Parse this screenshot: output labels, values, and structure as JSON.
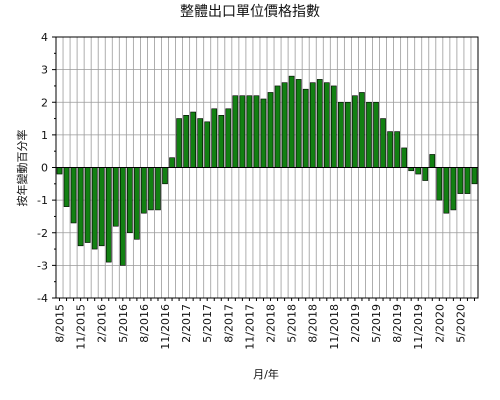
{
  "chart_data": {
    "type": "bar",
    "title": "整體出口單位價格指數",
    "xlabel": "月/年",
    "ylabel": "按年變動百分率",
    "ylim": [
      -4,
      4
    ],
    "yticks": [
      4,
      3,
      2,
      1,
      0,
      -1,
      -2,
      -3,
      -4
    ],
    "grid": true,
    "bar_color": "#128012",
    "bar_edge_color": "#000000",
    "categories": [
      "8/2015",
      "9/2015",
      "10/2015",
      "11/2015",
      "12/2015",
      "1/2016",
      "2/2016",
      "3/2016",
      "4/2016",
      "5/2016",
      "6/2016",
      "7/2016",
      "8/2016",
      "9/2016",
      "10/2016",
      "11/2016",
      "12/2016",
      "1/2017",
      "2/2017",
      "3/2017",
      "4/2017",
      "5/2017",
      "6/2017",
      "7/2017",
      "8/2017",
      "9/2017",
      "10/2017",
      "11/2017",
      "12/2017",
      "1/2018",
      "2/2018",
      "3/2018",
      "4/2018",
      "5/2018",
      "6/2018",
      "7/2018",
      "8/2018",
      "9/2018",
      "10/2018",
      "11/2018",
      "12/2018",
      "1/2019",
      "2/2019",
      "3/2019",
      "4/2019",
      "5/2019",
      "6/2019",
      "7/2019",
      "8/2019",
      "9/2019",
      "10/2019",
      "11/2019",
      "12/2019",
      "1/2020",
      "2/2020",
      "3/2020",
      "4/2020",
      "5/2020",
      "6/2020",
      "7/2020"
    ],
    "values": [
      -0.2,
      -1.2,
      -1.7,
      -2.4,
      -2.3,
      -2.5,
      -2.4,
      -2.9,
      -1.8,
      -3.0,
      -2.0,
      -2.2,
      -1.4,
      -1.3,
      -1.3,
      -0.5,
      0.3,
      1.5,
      1.6,
      1.7,
      1.5,
      1.4,
      1.8,
      1.6,
      1.8,
      2.2,
      2.2,
      2.2,
      2.2,
      2.1,
      2.3,
      2.5,
      2.6,
      2.8,
      2.7,
      2.4,
      2.6,
      2.7,
      2.6,
      2.5,
      2.0,
      2.0,
      2.2,
      2.3,
      2.0,
      2.0,
      1.5,
      1.1,
      1.1,
      0.6,
      -0.1,
      -0.2,
      -0.4,
      0.4,
      -1.0,
      -1.4,
      -1.3,
      -0.8,
      -0.8,
      -0.5
    ],
    "xtick_labels": [
      "8/2015",
      "11/2015",
      "2/2016",
      "5/2016",
      "8/2016",
      "11/2016",
      "2/2017",
      "5/2017",
      "8/2017",
      "11/2017",
      "2/2018",
      "5/2018",
      "8/2018",
      "11/2018",
      "2/2019",
      "5/2019",
      "8/2019",
      "11/2019",
      "2/2020",
      "5/2020"
    ]
  }
}
